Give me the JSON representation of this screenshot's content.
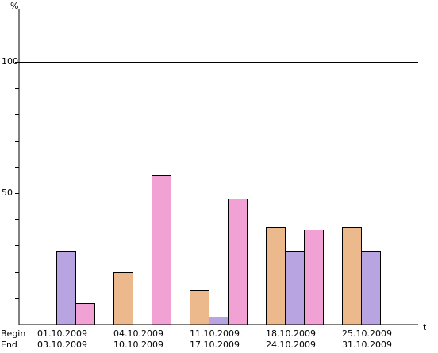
{
  "chart_data": {
    "type": "bar",
    "y_unit": "%",
    "x_unit": "t",
    "ylim": [
      0,
      100
    ],
    "y_tick_labels": [
      "50",
      "100"
    ],
    "reference_line": 100,
    "row_labels": [
      "Begin",
      "End"
    ],
    "periods": [
      {
        "begin": "01.10.2009",
        "end": "03.10.2009"
      },
      {
        "begin": "04.10.2009",
        "end": "10.10.2009"
      },
      {
        "begin": "11.10.2009",
        "end": "17.10.2009"
      },
      {
        "begin": "18.10.2009",
        "end": "24.10.2009"
      },
      {
        "begin": "25.10.2009",
        "end": "31.10.2009"
      }
    ],
    "series": [
      {
        "color": "#ecb98c",
        "values": [
          null,
          20,
          13,
          37,
          37
        ]
      },
      {
        "color": "#b8a4e0",
        "values": [
          28,
          null,
          3,
          28,
          28
        ]
      },
      {
        "color": "#f1a1d4",
        "values": [
          8,
          57,
          48,
          36,
          null
        ]
      }
    ],
    "grid": false,
    "legend": "none"
  }
}
